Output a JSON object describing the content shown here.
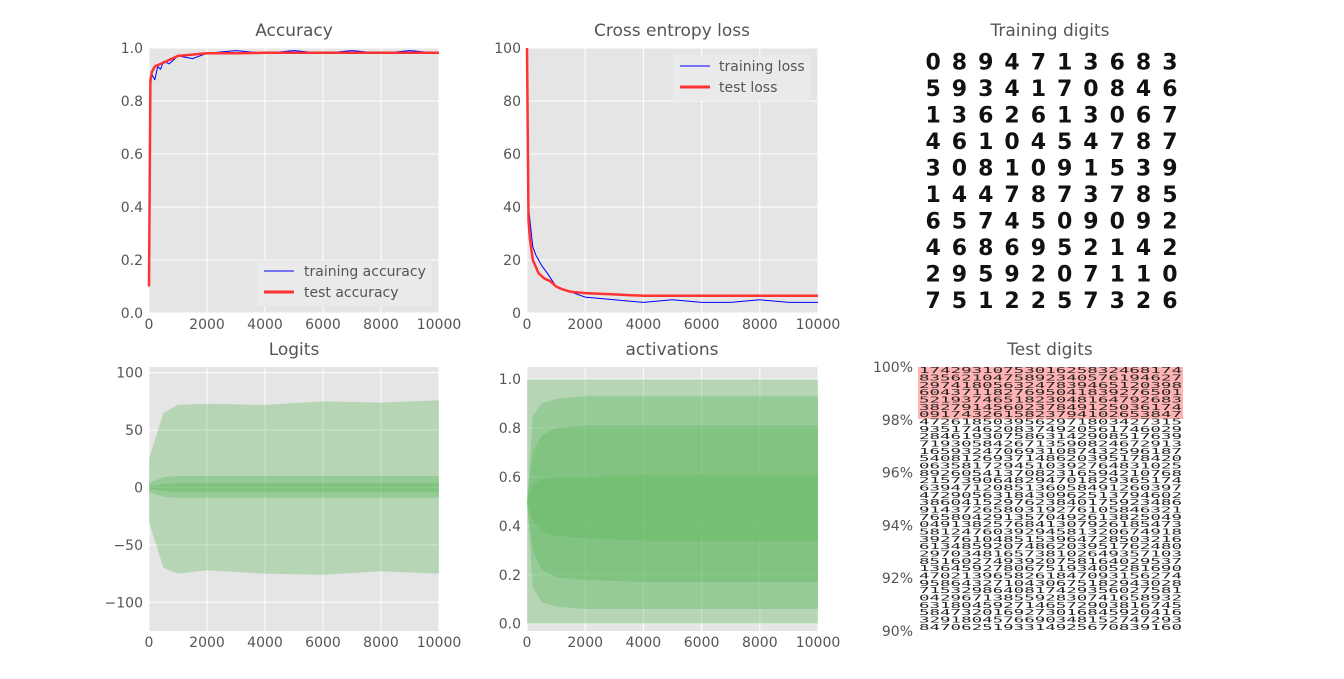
{
  "chart_data": [
    {
      "type": "line",
      "title": "Accuracy",
      "xlim": [
        0,
        10000
      ],
      "ylim": [
        0,
        1.0
      ],
      "xticks": [
        "0",
        "2000",
        "4000",
        "6000",
        "8000",
        "10000"
      ],
      "yticks": [
        "0.0",
        "0.2",
        "0.4",
        "0.6",
        "0.8",
        "1.0"
      ],
      "grid": true,
      "legend_position": "bottom-right",
      "series": [
        {
          "name": "training accuracy",
          "color": "#0000ff",
          "x": [
            0,
            50,
            100,
            200,
            300,
            400,
            500,
            700,
            1000,
            1500,
            2000,
            3000,
            4000,
            5000,
            6000,
            7000,
            8000,
            9000,
            10000
          ],
          "y": [
            0.1,
            0.85,
            0.9,
            0.88,
            0.93,
            0.92,
            0.95,
            0.94,
            0.97,
            0.96,
            0.98,
            0.99,
            0.98,
            0.99,
            0.98,
            0.99,
            0.98,
            0.99,
            0.98
          ]
        },
        {
          "name": "test accuracy",
          "color": "#ff3333",
          "x": [
            0,
            50,
            100,
            200,
            400,
            600,
            1000,
            1500,
            2000,
            3000,
            4000,
            6000,
            8000,
            10000
          ],
          "y": [
            0.1,
            0.88,
            0.91,
            0.93,
            0.94,
            0.95,
            0.97,
            0.975,
            0.98,
            0.98,
            0.982,
            0.982,
            0.982,
            0.982
          ]
        }
      ]
    },
    {
      "type": "line",
      "title": "Cross entropy loss",
      "xlim": [
        0,
        10000
      ],
      "ylim": [
        0,
        100
      ],
      "xticks": [
        "0",
        "2000",
        "4000",
        "6000",
        "8000",
        "10000"
      ],
      "yticks": [
        "0",
        "20",
        "40",
        "60",
        "80",
        "100"
      ],
      "grid": true,
      "legend_position": "top-right",
      "series": [
        {
          "name": "training loss",
          "color": "#0000ff",
          "x": [
            0,
            50,
            100,
            200,
            300,
            400,
            500,
            700,
            1000,
            1500,
            2000,
            3000,
            4000,
            5000,
            6000,
            7000,
            8000,
            9000,
            10000
          ],
          "y": [
            100,
            40,
            35,
            25,
            22,
            20,
            18,
            15,
            10,
            8,
            6,
            5,
            4,
            5,
            4,
            4,
            5,
            4,
            4
          ]
        },
        {
          "name": "test loss",
          "color": "#ff3333",
          "x": [
            0,
            50,
            100,
            200,
            400,
            600,
            800,
            1000,
            1200,
            1500,
            2000,
            3000,
            4000,
            6000,
            8000,
            10000
          ],
          "y": [
            100,
            35,
            28,
            20,
            15,
            13,
            12,
            10,
            9,
            8,
            7.5,
            7,
            6.5,
            6.5,
            6.5,
            6.5
          ]
        }
      ]
    },
    {
      "type": "area",
      "title": "Logits",
      "xlim": [
        0,
        10000
      ],
      "ylim": [
        -125,
        105
      ],
      "xticks": [
        "0",
        "2000",
        "4000",
        "6000",
        "8000",
        "10000"
      ],
      "yticks": [
        "100",
        "50",
        "0",
        "−50",
        "−100"
      ],
      "ytick_values": [
        100,
        50,
        0,
        -50,
        -100
      ],
      "grid": true,
      "color": "#5cb85c",
      "bands": [
        {
          "x": [
            0,
            500,
            1000,
            2000,
            4000,
            6000,
            8000,
            10000
          ],
          "lower": [
            -30,
            -70,
            -75,
            -72,
            -75,
            -76,
            -73,
            -75
          ],
          "upper": [
            25,
            65,
            72,
            73,
            72,
            75,
            74,
            76
          ]
        },
        {
          "x": [
            0,
            500,
            1000,
            2000,
            4000,
            6000,
            8000,
            10000
          ],
          "lower": [
            -4,
            -8,
            -9,
            -9,
            -9,
            -9,
            -9,
            -9
          ],
          "upper": [
            4,
            9,
            10,
            10,
            10,
            10,
            10,
            10
          ]
        },
        {
          "x": [
            0,
            500,
            1000,
            2000,
            4000,
            6000,
            8000,
            10000
          ],
          "lower": [
            -1,
            -3,
            -4,
            -4,
            -4,
            -4,
            -4,
            -4
          ],
          "upper": [
            1,
            3,
            4,
            4,
            4,
            4,
            4,
            4
          ]
        }
      ]
    },
    {
      "type": "area",
      "title": "activations",
      "xlim": [
        0,
        10000
      ],
      "ylim": [
        -0.03,
        1.05
      ],
      "xticks": [
        "0",
        "2000",
        "4000",
        "6000",
        "8000",
        "10000"
      ],
      "yticks": [
        "0.0",
        "0.2",
        "0.4",
        "0.6",
        "0.8",
        "1.0"
      ],
      "ytick_values": [
        0,
        0.2,
        0.4,
        0.6,
        0.8,
        1.0
      ],
      "grid": true,
      "color": "#5cb85c",
      "bands": [
        {
          "x": [
            0,
            10000
          ],
          "lower": [
            0,
            0
          ],
          "upper": [
            1,
            1
          ]
        },
        {
          "x": [
            0,
            200,
            500,
            1000,
            2000,
            4000,
            10000
          ],
          "lower": [
            0.5,
            0.15,
            0.09,
            0.07,
            0.06,
            0.06,
            0.06
          ],
          "upper": [
            0.5,
            0.85,
            0.9,
            0.92,
            0.93,
            0.93,
            0.93
          ]
        },
        {
          "x": [
            0,
            200,
            500,
            1000,
            2000,
            4000,
            10000
          ],
          "lower": [
            0.5,
            0.3,
            0.22,
            0.19,
            0.18,
            0.17,
            0.17
          ],
          "upper": [
            0.5,
            0.7,
            0.77,
            0.8,
            0.81,
            0.81,
            0.81
          ]
        },
        {
          "x": [
            0,
            200,
            500,
            1000,
            2000,
            4000,
            10000
          ],
          "lower": [
            0.5,
            0.42,
            0.38,
            0.36,
            0.35,
            0.34,
            0.34
          ],
          "upper": [
            0.5,
            0.57,
            0.59,
            0.6,
            0.6,
            0.61,
            0.61
          ]
        }
      ]
    }
  ],
  "training_digits": {
    "title": "Training digits",
    "rows": [
      "0894713683",
      "5934170846",
      "1362613067",
      "4610454787",
      "3081091539",
      "1447873785",
      "6574509092",
      "4686952142",
      "2959207110",
      "7512257326"
    ]
  },
  "test_digits": {
    "title": "Test digits",
    "yticks": [
      "100%",
      "98%",
      "96%",
      "94%",
      "92%",
      "90%"
    ],
    "highlight_color": "#ffb3b3",
    "rows": [
      "1742931075301625832468174",
      "8356210475892340576194627",
      "2974180563247839465120398",
      "6043711827695041839276501",
      "5219374651823048164792683",
      "3827914560237849125036174",
      "0917432615823794102653847",
      "4726185039562971803427315",
      "9351746208374920561746029",
      "2846193075863142908517639",
      "7193058426713590824672913",
      "1659324706931087432596187",
      "5408126937148620395178420",
      "0635817294510392764831025",
      "8926054137082316594210768",
      "2157390648294701829365174",
      "6394712085136058491260397",
      "4729056318430962513794602",
      "3860415297623840175923486",
      "9143726580319276105846321",
      "7658042913570492613825049",
      "0491382576841307926185473",
      "5812476039294581320674918",
      "3927610485153964728503216",
      "6134859207486203951762480",
      "2970348165738102649357103",
      "8516027493920758164029537",
      "1364592780675193405281690",
      "4702139658261847093156274",
      "9586432710430675182943028",
      "7153298640817429356027581",
      "0429671385592830741658932",
      "6318045927146572903816745",
      "5847320169273016845920416",
      "3291804576690348152747293",
      "8470625193314925670839160"
    ]
  }
}
